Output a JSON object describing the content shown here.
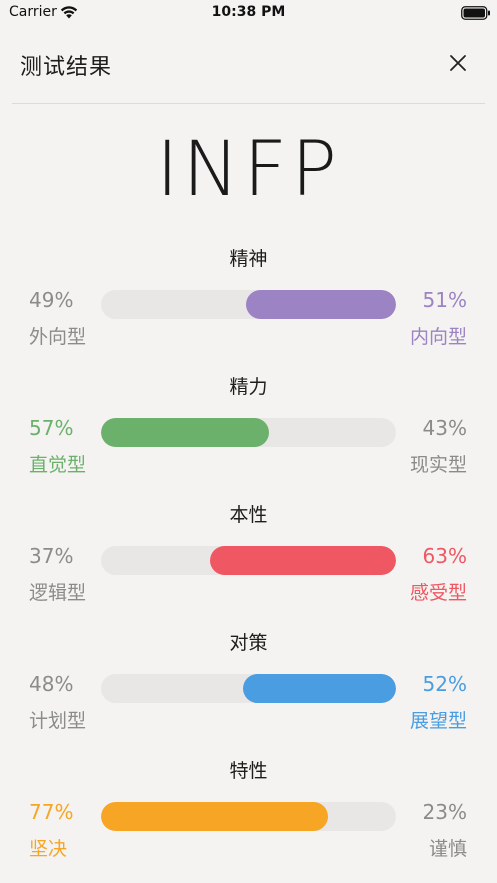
{
  "status_bar": {
    "carrier": "Carrier",
    "time": "10:38 PM"
  },
  "header": {
    "title": "测试结果",
    "close_icon": "close-icon"
  },
  "result": {
    "type": "INFP"
  },
  "dimensions": [
    {
      "name": "精神",
      "left_percent": "49%",
      "left_label": "外向型",
      "right_percent": "51%",
      "right_label": "内向型",
      "dominant_side": "right",
      "dominant_fraction": 0.51,
      "color": "#9b83c4"
    },
    {
      "name": "精力",
      "left_percent": "57%",
      "left_label": "直觉型",
      "right_percent": "43%",
      "right_label": "现实型",
      "dominant_side": "left",
      "dominant_fraction": 0.57,
      "color": "#6bb06b"
    },
    {
      "name": "本性",
      "left_percent": "37%",
      "left_label": "逻辑型",
      "right_percent": "63%",
      "right_label": "感受型",
      "dominant_side": "right",
      "dominant_fraction": 0.63,
      "color": "#ef5763"
    },
    {
      "name": "对策",
      "left_percent": "48%",
      "left_label": "计划型",
      "right_percent": "52%",
      "right_label": "展望型",
      "dominant_side": "right",
      "dominant_fraction": 0.52,
      "color": "#4a9de0"
    },
    {
      "name": "特性",
      "left_percent": "77%",
      "left_label": "坚决",
      "right_percent": "23%",
      "right_label": "谨慎",
      "dominant_side": "left",
      "dominant_fraction": 0.77,
      "color": "#f6a524"
    }
  ]
}
